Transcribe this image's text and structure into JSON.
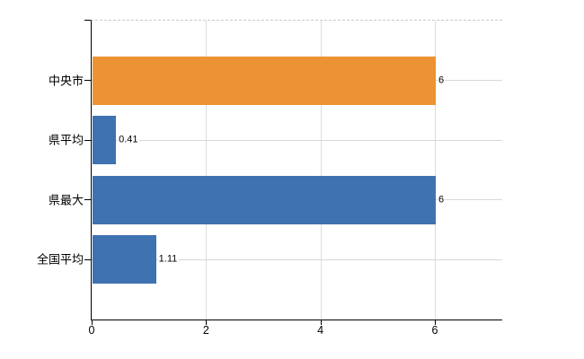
{
  "chart_data": {
    "type": "bar",
    "orientation": "horizontal",
    "title": "",
    "xlabel": "",
    "ylabel": "",
    "categories": [
      "中央市",
      "県平均",
      "県最大",
      "全国平均"
    ],
    "values": [
      6,
      0.41,
      6,
      1.11
    ],
    "value_labels": [
      "6",
      "0.41",
      "6",
      "1.11"
    ],
    "bar_colors": [
      "#EC9333",
      "#3F72B0",
      "#3F72B0",
      "#3F72B0"
    ],
    "x_ticks": [
      0,
      2,
      4,
      6
    ],
    "x_tick_labels": [
      "0",
      "2",
      "4",
      "6"
    ],
    "xlim": [
      0,
      7.2
    ],
    "grid": true,
    "legend": false
  },
  "colors": {
    "bar_orange": "#EC9333",
    "bar_blue": "#3F72B0",
    "axis": "#000000",
    "gridline_vertical": "#dcdcdc",
    "gridline_horizontal": "#d5dad3",
    "plot_top_border": "#c9c7d2",
    "text": "#000000",
    "background": "#ffffff"
  }
}
